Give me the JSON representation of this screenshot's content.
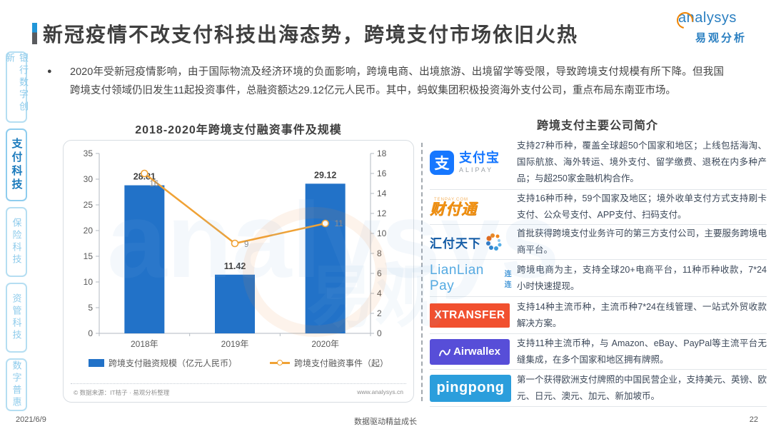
{
  "header": {
    "title": "新冠疫情不改支付科技出海态势，跨境支付市场依旧火热",
    "logo_brand": "analysys",
    "logo_cn": "易观分析"
  },
  "sidebar": {
    "active_index": 1,
    "items": [
      {
        "label": "银行数字创新"
      },
      {
        "label": "支付科技"
      },
      {
        "label": "保险科技"
      },
      {
        "label": "资管科技"
      },
      {
        "label": "数字普惠"
      }
    ]
  },
  "intro": {
    "bullet": "●",
    "text": "2020年受新冠疫情影响，由于国际物流及经济环境的负面影响，跨境电商、出境旅游、出境留学等受限，导致跨境支付规模有所下降。但我国跨境支付领域仍旧发生11起投资事件，总融资额达29.12亿元人民币。其中，蚂蚁集团积极投资海外支付公司，重点布局东南亚市场。"
  },
  "chart_data": {
    "type": "bar+line",
    "title": "2018-2020年跨境支付融资事件及规模",
    "categories": [
      "2018年",
      "2019年",
      "2020年"
    ],
    "series": [
      {
        "name": "跨境支付融资规模（亿元人民币）",
        "type": "bar",
        "axis": "left",
        "values": [
          28.81,
          11.42,
          29.12
        ],
        "color": "#2272c8"
      },
      {
        "name": "跨境支付融资事件（起）",
        "type": "line",
        "axis": "right",
        "values": [
          16,
          9,
          11
        ],
        "color": "#f0a235"
      }
    ],
    "left_axis": {
      "min": 0,
      "max": 35,
      "step": 5
    },
    "right_axis": {
      "min": 0,
      "max": 18,
      "step": 2
    },
    "grid": false,
    "legend_position": "bottom",
    "source": "© 数据来源：IT桔子 · 易观分析整理",
    "source_url": "www.analysys.cn"
  },
  "companies": {
    "title": "跨境支付主要公司简介",
    "rows": [
      {
        "name": "支付宝",
        "logo_icon_char": "支",
        "logo_cn": "支付宝",
        "logo_en": "ALIPAY",
        "desc": "支持27种币种，覆盖全球超50个国家和地区；上线包括海淘、国际航旅、海外转运、境外支付、留学缴费、退税在内多种产品；与超250家金融机构合作。"
      },
      {
        "name": "财付通",
        "logo_tag": "TENPAY.COM",
        "logo_text": "财付通",
        "desc": "支持16种币种，59个国家及地区；境外收单支付方式支持刷卡支付、公众号支付、APP支付、扫码支付。"
      },
      {
        "name": "汇付天下",
        "logo_text": "汇付天下",
        "desc": "首批获得跨境支付业务许可的第三方支付公司，主要服务跨境电商平台。"
      },
      {
        "name": "连连支付",
        "logo_text": "LianLian Pay",
        "logo_suffix": "连连",
        "desc": "跨境电商为主，支持全球20+电商平台，11种币种收款，7*24 小时快速提现。"
      },
      {
        "name": "XTRANSFER",
        "logo_text": "XTRANSFER",
        "desc": "支持14种主流币种，主流币种7*24在线管理、一站式外贸收款解决方案。"
      },
      {
        "name": "Airwallex",
        "logo_text": "Airwallex",
        "desc": "支持11种主流币种，与 Amazon、eBay、PayPal等主流平台无缝集成，在多个国家和地区拥有牌照。"
      },
      {
        "name": "PingPong",
        "logo_text": "pingpong",
        "desc": "第一个获得欧洲支付牌照的中国民营企业，支持美元、英镑、欧元、日元、澳元、加元、新加坡币。"
      }
    ]
  },
  "footer": {
    "date": "2021/6/9",
    "slogan": "数据驱动精益成长",
    "page": "22"
  },
  "colors": {
    "bar_blue": "#2272c8",
    "line_orange": "#f0a235",
    "sidebar_active": "#1a7abc",
    "alipay_blue": "#1677ff",
    "tenpay_orange": "#f39314",
    "huifu_blue": "#0e57a3",
    "lianlian_blue": "#54aae2",
    "xtransfer_red": "#f1502f",
    "airwallex_purple": "#574ed8",
    "pingpong_blue": "#2b9edc"
  }
}
